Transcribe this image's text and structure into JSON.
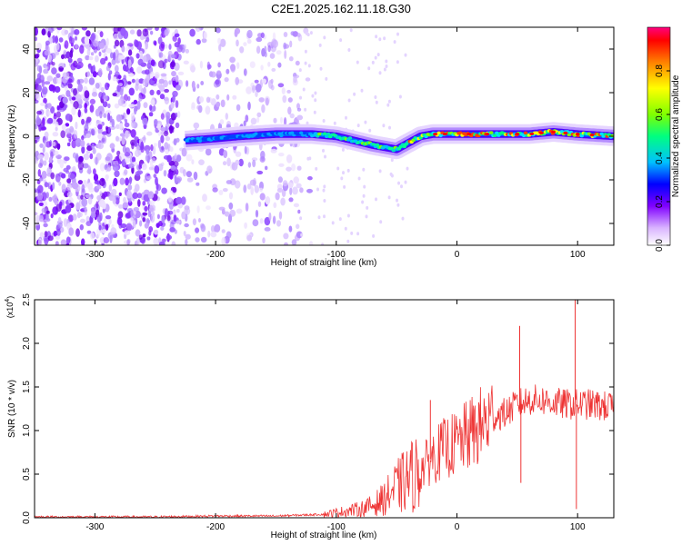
{
  "title": "C2E1.2025.162.11.18.G30",
  "chart_data": [
    {
      "type": "heatmap",
      "xlabel": "Height of straight line (km)",
      "ylabel": "Frequency (Hz)",
      "xlim": [
        -350,
        130
      ],
      "ylim": [
        -50,
        50
      ],
      "x_ticks": [
        -300,
        -200,
        -100,
        0,
        100
      ],
      "y_ticks": [
        -40,
        -20,
        0,
        20,
        40
      ],
      "colorbar": {
        "label": "Normalized spectral amplitude",
        "range": [
          0,
          1
        ],
        "ticks": [
          "0.0",
          "0.2",
          "0.4",
          "0.6",
          "0.8"
        ],
        "colors": [
          "#ffffff",
          "#d9b3ff",
          "#8000ff",
          "#0000ff",
          "#00c0ff",
          "#00ff80",
          "#80ff00",
          "#ffff00",
          "#ff8000",
          "#ff0000",
          "#ff0080"
        ]
      },
      "ridge": {
        "x": [
          -225,
          -200,
          -180,
          -150,
          -120,
          -100,
          -85,
          -70,
          -60,
          -50,
          -40,
          -30,
          -20,
          0,
          20,
          40,
          60,
          80,
          100,
          130
        ],
        "frequency": [
          -2,
          -1,
          0,
          1,
          1,
          0,
          -2,
          -4,
          -5,
          -6,
          -3,
          0,
          1,
          1,
          1,
          1,
          1,
          2,
          1,
          0
        ]
      },
      "noise_region_x": [
        -350,
        -130
      ]
    },
    {
      "type": "line",
      "xlabel": "Height of straight line (km)",
      "ylabel": "SNR (10 * v/v)",
      "y_multiplier": "(x10",
      "y_multiplier_exp": "4",
      "xlim": [
        -350,
        130
      ],
      "ylim": [
        0,
        2.5
      ],
      "x_ticks": [
        -300,
        -200,
        -100,
        0,
        100
      ],
      "y_ticks": [
        "0.0",
        "0.5",
        "1.0",
        "1.5",
        "2.0",
        "2.5"
      ],
      "color": "#ee3333",
      "series": [
        {
          "x": [
            -350,
            -300,
            -250,
            -200,
            -150,
            -110,
            -100,
            -90,
            -80,
            -70,
            -60,
            -50,
            -40,
            -30,
            -20,
            -10,
            0,
            10,
            20,
            30,
            40,
            50,
            60,
            70,
            80,
            90,
            100,
            110,
            120,
            130
          ],
          "values": [
            0.01,
            0.01,
            0.01,
            0.02,
            0.02,
            0.04,
            0.06,
            0.08,
            0.1,
            0.14,
            0.22,
            0.35,
            0.45,
            0.55,
            0.7,
            0.8,
            0.85,
            0.95,
            1.05,
            1.15,
            1.2,
            1.3,
            1.35,
            1.35,
            1.32,
            1.3,
            1.3,
            1.3,
            1.28,
            1.27
          ]
        }
      ],
      "spikes": [
        {
          "x": -22,
          "value": 1.35
        },
        {
          "x": 52,
          "value": 2.2
        },
        {
          "x": 53,
          "value": 0.4
        },
        {
          "x": 98,
          "value": 2.55
        },
        {
          "x": 99,
          "value": 0.1
        }
      ]
    }
  ]
}
